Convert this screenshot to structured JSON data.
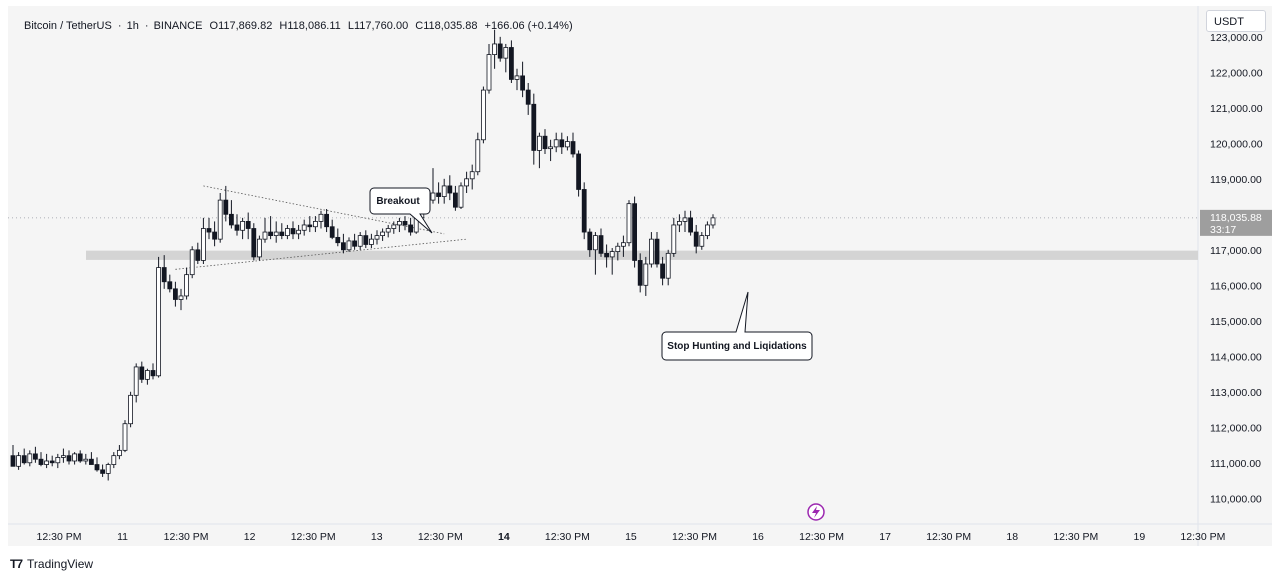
{
  "legend": {
    "symbol": "Bitcoin / TetherUS",
    "interval": "1h",
    "exchange": "BINANCE",
    "open_label": "O",
    "open": "117,869.82",
    "high_label": "H",
    "high": "118,086.11",
    "low_label": "L",
    "low": "117,760.00",
    "close_label": "C",
    "close": "118,035.88",
    "change": "+166.06 (+0.14%)"
  },
  "currency": "USDT",
  "last_price": {
    "price": "118,035.88",
    "countdown": "33:17"
  },
  "footer": {
    "logo_mark": "T7",
    "brand": "TradingView"
  },
  "colors": {
    "candle": "#131722",
    "up_fill": "#ffffff",
    "background": "#f5f5f5",
    "support_zone": "#d4d4d4",
    "lightning": "#9c27b0"
  },
  "icons": {
    "lightning": "lightning-icon"
  },
  "chart_data": {
    "type": "candlestick",
    "ylim": [
      109500,
      123700
    ],
    "price_ticks": [
      "123,000.00",
      "122,000.00",
      "121,000.00",
      "120,000.00",
      "119,000.00",
      "118,000.00",
      "117,000.00",
      "116,000.00",
      "115,000.00",
      "114,000.00",
      "113,000.00",
      "112,000.00",
      "111,000.00",
      "110,000.00"
    ],
    "time_ticks": [
      {
        "label": "12:30 PM",
        "bold": false
      },
      {
        "label": "11",
        "bold": false
      },
      {
        "label": "12:30 PM",
        "bold": false
      },
      {
        "label": "12",
        "bold": false
      },
      {
        "label": "12:30 PM",
        "bold": false
      },
      {
        "label": "13",
        "bold": false
      },
      {
        "label": "12:30 PM",
        "bold": false
      },
      {
        "label": "14",
        "bold": true
      },
      {
        "label": "12:30 PM",
        "bold": false
      },
      {
        "label": "15",
        "bold": false
      },
      {
        "label": "12:30 PM",
        "bold": false
      },
      {
        "label": "16",
        "bold": false
      },
      {
        "label": "12:30 PM",
        "bold": false
      },
      {
        "label": "17",
        "bold": false
      },
      {
        "label": "12:30 PM",
        "bold": false
      },
      {
        "label": "18",
        "bold": false
      },
      {
        "label": "12:30 PM",
        "bold": false
      },
      {
        "label": "19",
        "bold": false
      },
      {
        "label": "12:30 PM",
        "bold": false
      }
    ],
    "support_zone": [
      116800,
      116920
    ],
    "annotations": [
      {
        "text": "Breakout"
      },
      {
        "text": "Stop Hunting and Liqidations"
      }
    ],
    "candles": [
      [
        111200,
        111500,
        110900,
        110900
      ],
      [
        110900,
        111300,
        110800,
        111200
      ],
      [
        111200,
        111400,
        110950,
        111000
      ],
      [
        111000,
        111350,
        110900,
        111250
      ],
      [
        111250,
        111450,
        111000,
        111100
      ],
      [
        111100,
        111300,
        110900,
        110950
      ],
      [
        110950,
        111250,
        110850,
        111050
      ],
      [
        111050,
        111200,
        110900,
        111000
      ],
      [
        111000,
        111250,
        110850,
        111150
      ],
      [
        111150,
        111400,
        111000,
        111200
      ],
      [
        111200,
        111350,
        110950,
        111050
      ],
      [
        111050,
        111300,
        110950,
        111250
      ],
      [
        111250,
        111350,
        111000,
        111050
      ],
      [
        111050,
        111250,
        110950,
        111100
      ],
      [
        111100,
        111300,
        110950,
        110950
      ],
      [
        110950,
        111150,
        110750,
        110800
      ],
      [
        110800,
        110950,
        110600,
        110700
      ],
      [
        110700,
        111000,
        110500,
        110950
      ],
      [
        110950,
        111300,
        110850,
        111200
      ],
      [
        111200,
        111500,
        111100,
        111350
      ],
      [
        111350,
        112200,
        111300,
        112100
      ],
      [
        112100,
        113000,
        112000,
        112900
      ],
      [
        112900,
        113800,
        112700,
        113700
      ],
      [
        113700,
        113850,
        113250,
        113350
      ],
      [
        113350,
        113650,
        113200,
        113600
      ],
      [
        113600,
        113800,
        113350,
        113450
      ],
      [
        113450,
        116800,
        113400,
        116500
      ],
      [
        116500,
        116850,
        115900,
        116100
      ],
      [
        116100,
        116300,
        115800,
        115900
      ],
      [
        115900,
        116100,
        115400,
        115600
      ],
      [
        115600,
        115900,
        115300,
        115700
      ],
      [
        115700,
        116500,
        115600,
        116300
      ],
      [
        116300,
        117100,
        116200,
        117000
      ],
      [
        117000,
        117200,
        116600,
        116700
      ],
      [
        116700,
        117900,
        116600,
        117600
      ],
      [
        117600,
        117900,
        117300,
        117500
      ],
      [
        117500,
        117800,
        117100,
        117300
      ],
      [
        117300,
        118600,
        117200,
        118400
      ],
      [
        118400,
        118800,
        117800,
        118000
      ],
      [
        118000,
        118400,
        117600,
        117700
      ],
      [
        117700,
        118000,
        117400,
        117550
      ],
      [
        117550,
        117900,
        117300,
        117800
      ],
      [
        117800,
        118050,
        117300,
        117600
      ],
      [
        117600,
        117750,
        116700,
        116800
      ],
      [
        116800,
        117400,
        116700,
        117300
      ],
      [
        117300,
        117900,
        117200,
        117500
      ],
      [
        117500,
        117950,
        117300,
        117400
      ],
      [
        117400,
        117800,
        117200,
        117500
      ],
      [
        117500,
        117750,
        117300,
        117400
      ],
      [
        117400,
        117700,
        117300,
        117600
      ],
      [
        117600,
        117800,
        117300,
        117450
      ],
      [
        117450,
        117700,
        117300,
        117550
      ],
      [
        117550,
        117850,
        117400,
        117700
      ],
      [
        117700,
        117950,
        117500,
        117650
      ],
      [
        117650,
        117950,
        117500,
        117800
      ],
      [
        117800,
        118100,
        117600,
        118000
      ],
      [
        118000,
        118150,
        117500,
        117650
      ],
      [
        117650,
        117850,
        117300,
        117350
      ],
      [
        117350,
        117600,
        117100,
        117200
      ],
      [
        117200,
        117450,
        116900,
        117000
      ],
      [
        117000,
        117350,
        116950,
        117250
      ],
      [
        117250,
        117450,
        117000,
        117100
      ],
      [
        117100,
        117500,
        117000,
        117400
      ],
      [
        117400,
        117550,
        117050,
        117150
      ],
      [
        117150,
        117450,
        117050,
        117300
      ],
      [
        117300,
        117550,
        117150,
        117400
      ],
      [
        117400,
        117600,
        117250,
        117500
      ],
      [
        117500,
        117700,
        117350,
        117600
      ],
      [
        117600,
        117800,
        117450,
        117700
      ],
      [
        117700,
        117900,
        117500,
        117800
      ],
      [
        117800,
        117950,
        117550,
        117700
      ],
      [
        117700,
        117900,
        117400,
        117500
      ],
      [
        117500,
        118000,
        117450,
        117900
      ],
      [
        117900,
        118350,
        117850,
        118300
      ],
      [
        118300,
        118600,
        118100,
        118400
      ],
      [
        118400,
        119300,
        118300,
        118600
      ],
      [
        118600,
        118900,
        118300,
        118500
      ],
      [
        118500,
        119000,
        118300,
        118800
      ],
      [
        118800,
        119100,
        118400,
        118600
      ],
      [
        118600,
        118800,
        118100,
        118200
      ],
      [
        118200,
        118900,
        118150,
        118800
      ],
      [
        118800,
        119200,
        118600,
        119000
      ],
      [
        119000,
        119400,
        118700,
        119200
      ],
      [
        119200,
        120300,
        119100,
        120100
      ],
      [
        120100,
        121600,
        120000,
        121500
      ],
      [
        121500,
        122800,
        121400,
        122500
      ],
      [
        122500,
        123200,
        122100,
        122800
      ],
      [
        122800,
        123000,
        122300,
        122400
      ],
      [
        122400,
        122800,
        122000,
        122700
      ],
      [
        122700,
        122900,
        121700,
        121800
      ],
      [
        121800,
        122100,
        121500,
        121900
      ],
      [
        121900,
        122300,
        121300,
        121500
      ],
      [
        121500,
        121700,
        120800,
        121100
      ],
      [
        121100,
        121400,
        119400,
        119800
      ],
      [
        119800,
        120300,
        119300,
        120200
      ],
      [
        120200,
        120400,
        119700,
        119850
      ],
      [
        119850,
        120100,
        119500,
        119900
      ],
      [
        119900,
        120300,
        119750,
        120100
      ],
      [
        120100,
        120300,
        119700,
        119900
      ],
      [
        119900,
        120200,
        119800,
        120050
      ],
      [
        120050,
        120300,
        119600,
        119700
      ],
      [
        119700,
        119800,
        118500,
        118700
      ],
      [
        118700,
        118900,
        117300,
        117500
      ],
      [
        117500,
        117600,
        116800,
        117000
      ],
      [
        117000,
        117500,
        116300,
        117400
      ],
      [
        117400,
        117600,
        116800,
        116900
      ],
      [
        116900,
        117150,
        116500,
        116800
      ],
      [
        116800,
        117050,
        116300,
        116950
      ],
      [
        116950,
        117200,
        116700,
        117100
      ],
      [
        117100,
        117400,
        116800,
        117200
      ],
      [
        117200,
        118400,
        117100,
        118300
      ],
      [
        118300,
        118500,
        116500,
        116700
      ],
      [
        116700,
        116900,
        115800,
        116000
      ],
      [
        116000,
        116800,
        115700,
        116600
      ],
      [
        116600,
        117500,
        116500,
        117300
      ],
      [
        117300,
        117500,
        116500,
        116600
      ],
      [
        116600,
        116800,
        116000,
        116200
      ],
      [
        116200,
        117000,
        116000,
        116900
      ],
      [
        116900,
        117900,
        116800,
        117700
      ],
      [
        117700,
        118000,
        117500,
        117800
      ],
      [
        117800,
        118100,
        117500,
        117900
      ],
      [
        117900,
        118100,
        117400,
        117500
      ],
      [
        117500,
        117700,
        116900,
        117100
      ],
      [
        117100,
        117500,
        117000,
        117400
      ],
      [
        117400,
        117800,
        117300,
        117700
      ],
      [
        117700,
        118000,
        117600,
        117900
      ]
    ]
  }
}
